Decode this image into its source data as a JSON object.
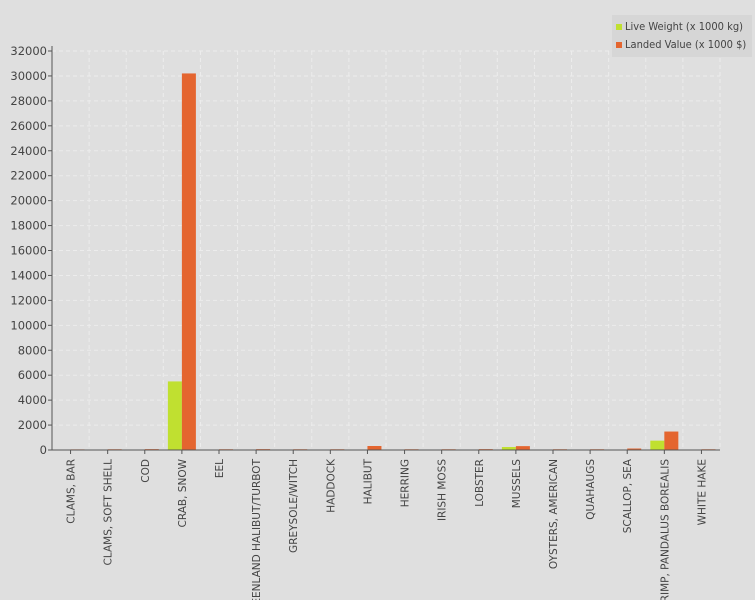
{
  "chart_data": {
    "type": "bar",
    "categories": [
      "CLAMS, BAR",
      "CLAMS, SOFT SHELL",
      "COD",
      "CRAB, SNOW",
      "EEL",
      "GREENLAND HALIBUT/TURBOT",
      "GREYSOLE/WITCH",
      "HADDOCK",
      "HALIBUT",
      "HERRING",
      "IRISH MOSS",
      "LOBSTER",
      "MUSSELS",
      "OYSTERS, AMERICAN",
      "QUAHAUGS",
      "SCALLOP, SEA",
      "SHRIMP, PANDALUS BOREALIS",
      "WHITE HAKE"
    ],
    "series": [
      {
        "name": "Live Weight (x 1000 kg)",
        "color": "#c0e030",
        "values": [
          10,
          15,
          20,
          5500,
          10,
          15,
          10,
          10,
          35,
          10,
          15,
          20,
          240,
          10,
          15,
          20,
          750,
          10
        ]
      },
      {
        "name": "Landed Value (x 1000 $)",
        "color": "#e4652f",
        "values": [
          50,
          60,
          70,
          30200,
          60,
          70,
          60,
          60,
          320,
          60,
          60,
          70,
          310,
          60,
          60,
          120,
          1480,
          60
        ]
      }
    ],
    "ylim": [
      0,
      32000
    ],
    "yticks": [
      0,
      2000,
      4000,
      6000,
      8000,
      10000,
      12000,
      14000,
      16000,
      18000,
      20000,
      22000,
      24000,
      26000,
      28000,
      30000,
      32000
    ],
    "grid": true,
    "legend_position": "top-right",
    "xlabel": "",
    "ylabel": ""
  }
}
